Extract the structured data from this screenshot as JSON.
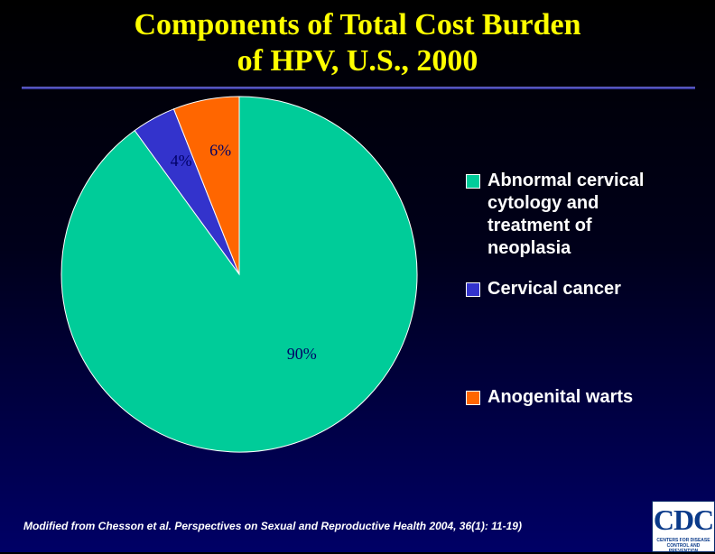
{
  "title_line1": "Components of Total Cost Burden",
  "title_line2": "of HPV, U.S., 2000",
  "source": "Modified from Chesson et al. Perspectives on Sexual and Reproductive Health 2004, 36(1): 11-19)",
  "logo": {
    "text": "CDC",
    "subtext": "CENTERS FOR DISEASE CONTROL AND PREVENTION"
  },
  "colors": {
    "title": "#ffff00",
    "background_top": "#000000",
    "background_bottom": "#000066",
    "data_label": "#000066"
  },
  "chart_data": {
    "type": "pie",
    "start_angle_deg": 0,
    "direction": "clockwise",
    "slices": [
      {
        "name": "Abnormal cervical cytology and treatment of neoplasia",
        "value": 90,
        "label": "90%",
        "color": "#00cc99"
      },
      {
        "name": "Cervical cancer",
        "value": 4,
        "label": "4%",
        "color": "#3333cc"
      },
      {
        "name": "Anogenital warts",
        "value": 6,
        "label": "6%",
        "color": "#ff6600"
      }
    ],
    "legend_position": "right"
  }
}
